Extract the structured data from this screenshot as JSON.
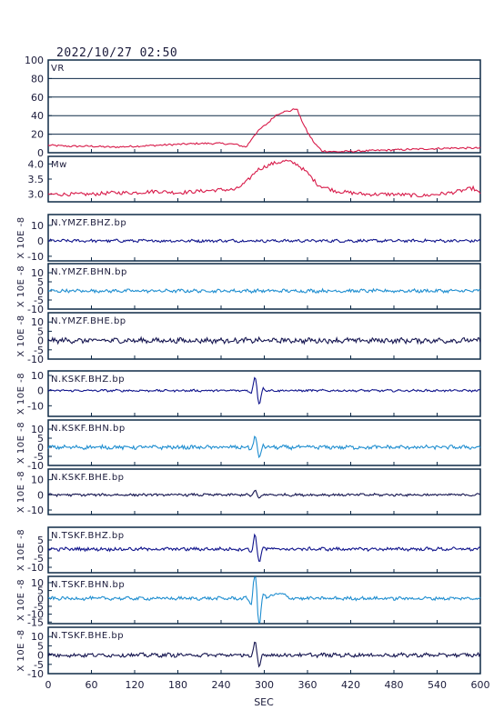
{
  "title": "2022/10/27 02:50",
  "colors": {
    "frame": "#0e2a47",
    "vr_mw": "#d81b4a",
    "bhz": "#10148c",
    "bhn": "#1f8ed0",
    "bhe": "#151550",
    "grid": "#0e2a47"
  },
  "chart_data": {
    "type": "line",
    "xlabel": "SEC",
    "xlim": [
      0,
      600
    ],
    "xticks": [
      "0",
      "60",
      "120",
      "180",
      "240",
      "300",
      "360",
      "420",
      "480",
      "540",
      "600"
    ],
    "panels": [
      {
        "label": "VR",
        "ylim": [
          0,
          100
        ],
        "yticks": [
          "0",
          "20",
          "40",
          "60",
          "80",
          "100"
        ],
        "grid": true,
        "series_color": "vr_mw",
        "points": [
          [
            0,
            8
          ],
          [
            30,
            7
          ],
          [
            60,
            7
          ],
          [
            90,
            6
          ],
          [
            120,
            7
          ],
          [
            150,
            8
          ],
          [
            180,
            9
          ],
          [
            210,
            10
          ],
          [
            240,
            10
          ],
          [
            260,
            9
          ],
          [
            275,
            6
          ],
          [
            285,
            18
          ],
          [
            295,
            26
          ],
          [
            305,
            32
          ],
          [
            315,
            40
          ],
          [
            325,
            44
          ],
          [
            335,
            45
          ],
          [
            345,
            48
          ],
          [
            350,
            38
          ],
          [
            360,
            22
          ],
          [
            370,
            10
          ],
          [
            380,
            2
          ],
          [
            400,
            1
          ],
          [
            440,
            2
          ],
          [
            480,
            3
          ],
          [
            520,
            4
          ],
          [
            560,
            5
          ],
          [
            600,
            5
          ]
        ]
      },
      {
        "label": "Mw",
        "ylim": [
          2.75,
          4.25
        ],
        "yticks": [
          "3.0",
          "3.5",
          "4.0"
        ],
        "grid": false,
        "series_color": "vr_mw",
        "points": [
          [
            0,
            3.0
          ],
          [
            30,
            3.0
          ],
          [
            60,
            3.0
          ],
          [
            90,
            3.05
          ],
          [
            120,
            3.05
          ],
          [
            150,
            3.1
          ],
          [
            180,
            3.05
          ],
          [
            210,
            3.1
          ],
          [
            240,
            3.15
          ],
          [
            260,
            3.15
          ],
          [
            275,
            3.4
          ],
          [
            290,
            3.8
          ],
          [
            310,
            4.0
          ],
          [
            330,
            4.1
          ],
          [
            345,
            4.0
          ],
          [
            360,
            3.7
          ],
          [
            375,
            3.3
          ],
          [
            400,
            3.1
          ],
          [
            440,
            3.0
          ],
          [
            480,
            3.0
          ],
          [
            520,
            2.95
          ],
          [
            560,
            3.05
          ],
          [
            590,
            3.2
          ],
          [
            600,
            3.0
          ]
        ]
      },
      {
        "label": "N.YMZF.BHZ.bp",
        "ylabel": "X 10E -8",
        "ylim": [
          -13,
          17
        ],
        "yticks": [
          "-10",
          "0",
          "10"
        ],
        "series_color": "bhz",
        "noise": 0.8,
        "pulse": 0
      },
      {
        "label": "N.YMZF.BHN.bp",
        "ylabel": "X 10E -8",
        "ylim": [
          -10,
          15
        ],
        "yticks": [
          "-10",
          "-5",
          "0",
          "5",
          "10"
        ],
        "series_color": "bhn",
        "noise": 0.8,
        "pulse": 0
      },
      {
        "label": "N.YMZF.BHE.bp",
        "ylabel": "X 10E -8",
        "ylim": [
          -10,
          15
        ],
        "yticks": [
          "-10",
          "-5",
          "0",
          "5",
          "10"
        ],
        "series_color": "bhe",
        "noise": 1.2,
        "pulse": 0
      },
      {
        "label": "N.KSKF.BHZ.bp",
        "ylabel": "X 10E -8",
        "ylim": [
          -17,
          13
        ],
        "yticks": [
          "-10",
          "0",
          "10"
        ],
        "series_color": "bhz",
        "noise": 0.6,
        "pulse": 7
      },
      {
        "label": "N.KSKF.BHN.bp",
        "ylabel": "X 10E -8",
        "ylim": [
          -10,
          15
        ],
        "yticks": [
          "-10",
          "-5",
          "0",
          "5",
          "10"
        ],
        "series_color": "bhn",
        "noise": 0.9,
        "pulse": 4.5
      },
      {
        "label": "N.KSKF.BHE.bp",
        "ylabel": "X 10E -8",
        "ylim": [
          -13,
          17
        ],
        "yticks": [
          "-10",
          "0",
          "10"
        ],
        "series_color": "bhe",
        "noise": 0.7,
        "pulse": 2
      },
      {
        "label": "N.TSKF.BHZ.bp",
        "ylabel": "X 10E -8",
        "ylim": [
          -13,
          12
        ],
        "yticks": [
          "-10",
          "-5",
          "0",
          "5"
        ],
        "series_color": "bhz",
        "noise": 0.8,
        "pulse": 6
      },
      {
        "label": "N.TSKF.BHN.bp",
        "ylabel": "X 10E -8",
        "ylim": [
          -16,
          14
        ],
        "yticks": [
          "-15",
          "-10",
          "-5",
          "0",
          "5",
          "10"
        ],
        "series_color": "bhn",
        "noise": 0.9,
        "pulse": 14
      },
      {
        "label": "N.TSKF.BHE.bp",
        "ylabel": "X 10E -8",
        "ylim": [
          -10,
          15
        ],
        "yticks": [
          "-10",
          "-5",
          "0",
          "5",
          "10"
        ],
        "series_color": "bhe",
        "noise": 0.9,
        "pulse": 5
      }
    ]
  }
}
